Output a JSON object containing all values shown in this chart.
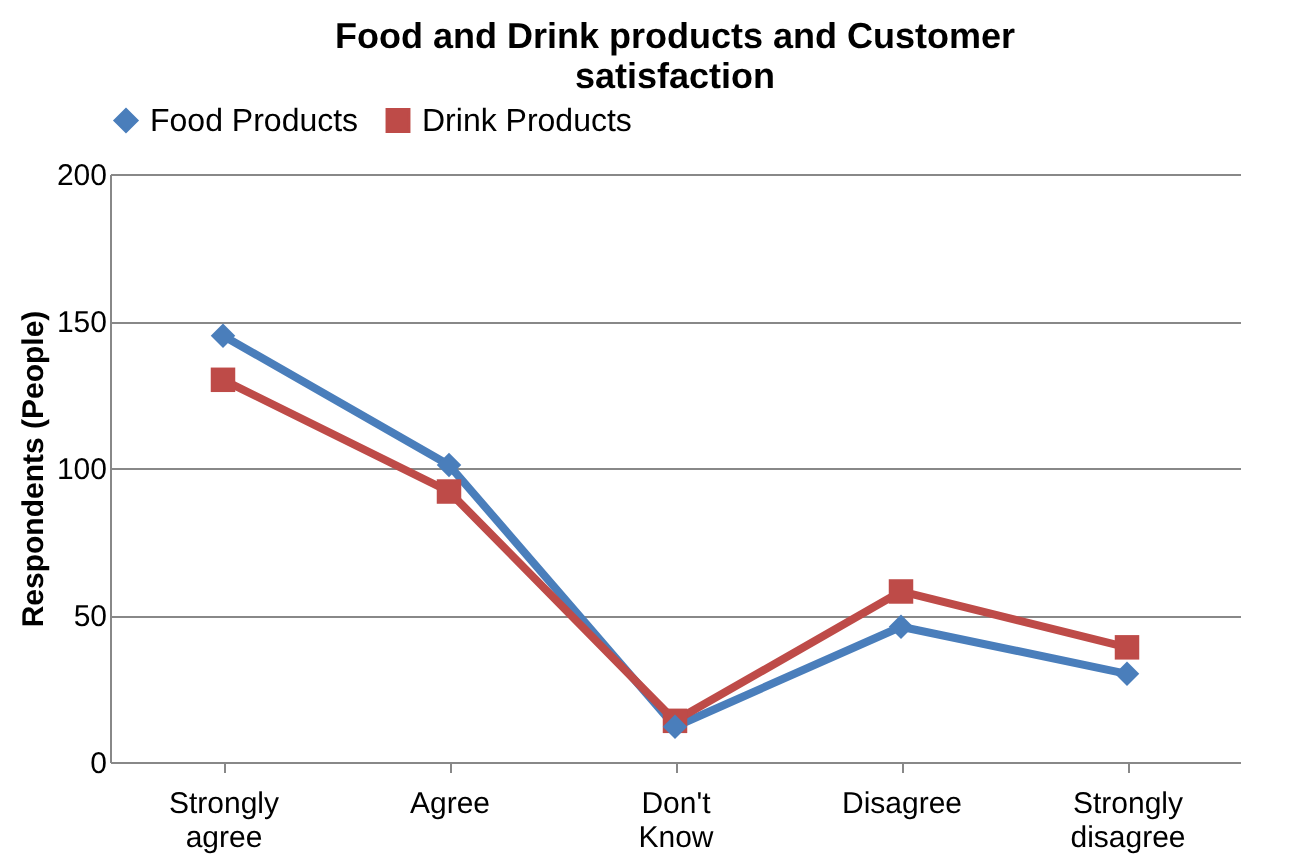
{
  "chart_data": {
    "type": "line",
    "title": [
      "Food and Drink products and Customer",
      "satisfaction"
    ],
    "ylabel": "Respondents (People)",
    "categories": [
      "Strongly agree",
      "Agree",
      "Don't Know",
      "Disagree",
      "Strongly disagree"
    ],
    "series": [
      {
        "name": "Food Products",
        "color": "#4a7ebb",
        "marker": "diamond",
        "values": [
          145,
          101,
          12,
          46,
          30
        ]
      },
      {
        "name": "Drink Products",
        "color": "#be4b48",
        "marker": "square",
        "values": [
          130,
          92,
          14,
          58,
          39
        ]
      }
    ],
    "ylim": [
      0,
      200
    ],
    "yticks": [
      0,
      50,
      100,
      150,
      200
    ],
    "grid": "y",
    "legend": "top",
    "line_style": "solid"
  }
}
